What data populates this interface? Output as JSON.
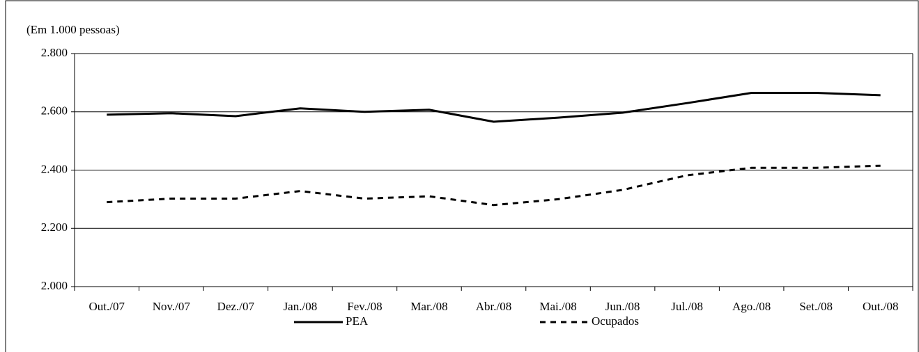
{
  "chart_data": {
    "type": "line",
    "unit_label": "(Em 1.000 pessoas)",
    "categories": [
      "Out./07",
      "Nov./07",
      "Dez./07",
      "Jan./08",
      "Fev./08",
      "Mar./08",
      "Abr./08",
      "Mai./08",
      "Jun./08",
      "Jul./08",
      "Ago./08",
      "Set./08",
      "Out./08"
    ],
    "series": [
      {
        "name": "PEA",
        "color": "#000000",
        "dash": "solid",
        "values": [
          2590,
          2595,
          2585,
          2612,
          2600,
          2607,
          2566,
          2580,
          2597,
          2630,
          2665,
          2665,
          2657
        ]
      },
      {
        "name": "Ocupados",
        "color": "#000000",
        "dash": "dashed",
        "values": [
          2290,
          2302,
          2302,
          2328,
          2302,
          2310,
          2280,
          2300,
          2332,
          2382,
          2408,
          2408,
          2415
        ]
      }
    ],
    "ylim": [
      2000,
      2800
    ],
    "yticks": [
      {
        "value": 2000,
        "label": "2.000"
      },
      {
        "value": 2200,
        "label": "2.200"
      },
      {
        "value": 2400,
        "label": "2.400"
      },
      {
        "value": 2600,
        "label": "2.600"
      },
      {
        "value": 2800,
        "label": "2.800"
      }
    ],
    "grid": true,
    "legend": "bottom"
  }
}
